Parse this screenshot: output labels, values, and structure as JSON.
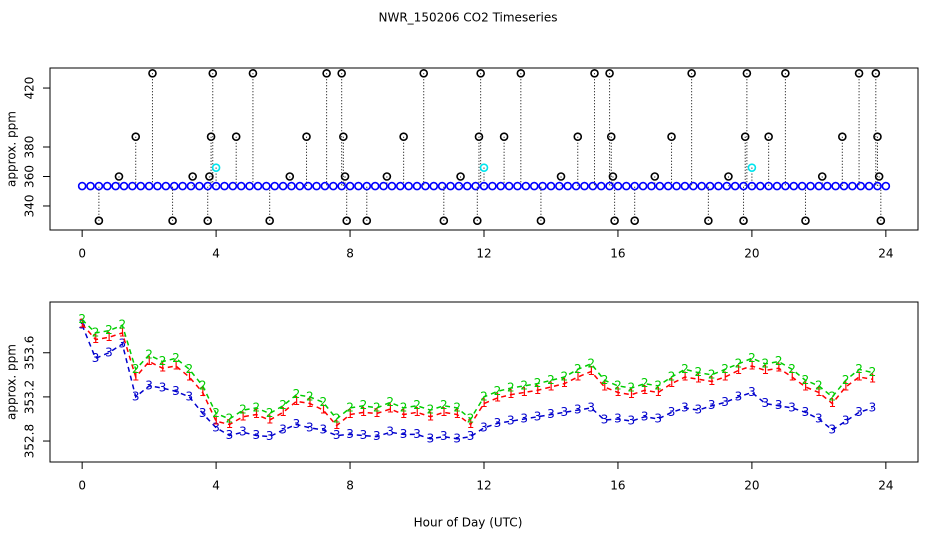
{
  "chart_data": [
    {
      "type": "scatter",
      "title": "NWR_150206  CO2 Timeseries",
      "ylabel": "approx. ppm",
      "xlim": [
        -0.96,
        24.96
      ],
      "ylim": [
        323.7,
        433.6
      ],
      "xticks": [
        0,
        4,
        8,
        12,
        16,
        20,
        24
      ],
      "yticks": [
        340,
        360,
        380,
        420
      ],
      "drop_lines": true,
      "series": [
        {
          "color": "#0000ff",
          "x": [
            0,
            0.25,
            0.5,
            0.75,
            1,
            1.25,
            1.5,
            1.75,
            2,
            2.25,
            2.5,
            2.75,
            3,
            3.25,
            3.5,
            3.75,
            4,
            4.25,
            4.5,
            4.75,
            5,
            5.25,
            5.5,
            5.75,
            6,
            6.25,
            6.5,
            6.75,
            7,
            7.25,
            7.5,
            7.75,
            8,
            8.25,
            8.5,
            8.75,
            9,
            9.25,
            9.5,
            9.75,
            10,
            10.25,
            10.5,
            10.75,
            11,
            11.25,
            11.5,
            11.75,
            12,
            12.25,
            12.5,
            12.75,
            13,
            13.25,
            13.5,
            13.75,
            14,
            14.25,
            14.5,
            14.75,
            15,
            15.25,
            15.5,
            15.75,
            16,
            16.25,
            16.5,
            16.75,
            17,
            17.25,
            17.5,
            17.75,
            18,
            18.25,
            18.5,
            18.75,
            19,
            19.25,
            19.5,
            19.75,
            20,
            20.25,
            20.5,
            20.75,
            21,
            21.25,
            21.5,
            21.75,
            22,
            22.25,
            22.5,
            22.75,
            23,
            23.25,
            23.5,
            23.75,
            24
          ],
          "values": [
            353.5,
            353.5,
            353.5,
            353.5,
            353.5,
            353.5,
            353.5,
            353.5,
            353.5,
            353.5,
            353.5,
            353.5,
            353.5,
            353.5,
            353.5,
            353.5,
            353.5,
            353.5,
            353.5,
            353.5,
            353.5,
            353.5,
            353.5,
            353.5,
            353.5,
            353.5,
            353.5,
            353.5,
            353.5,
            353.5,
            353.5,
            353.5,
            353.5,
            353.5,
            353.5,
            353.5,
            353.5,
            353.5,
            353.5,
            353.5,
            353.5,
            353.5,
            353.5,
            353.5,
            353.5,
            353.5,
            353.5,
            353.5,
            353.5,
            353.5,
            353.5,
            353.5,
            353.5,
            353.5,
            353.5,
            353.5,
            353.5,
            353.5,
            353.5,
            353.5,
            353.5,
            353.5,
            353.5,
            353.5,
            353.5,
            353.5,
            353.5,
            353.5,
            353.5,
            353.5,
            353.5,
            353.5,
            353.5,
            353.5,
            353.5,
            353.5,
            353.5,
            353.5,
            353.5,
            353.5,
            353.5,
            353.5,
            353.5,
            353.5,
            353.5,
            353.5,
            353.5,
            353.5,
            353.5,
            353.5,
            353.5,
            353.5,
            353.5,
            353.5,
            353.5,
            353.5,
            353.5
          ]
        },
        {
          "color": "#000000",
          "x": [
            0.5,
            1.1,
            1.6,
            2.1,
            2.7,
            3.3,
            3.75,
            3.8,
            3.85,
            3.9,
            4.6,
            5.1,
            5.6,
            6.2,
            6.7,
            7.3,
            7.75,
            7.8,
            7.85,
            7.9,
            8.5,
            9.1,
            9.6,
            10.2,
            10.8,
            11.3,
            11.8,
            11.85,
            11.9,
            12.6,
            13.1,
            13.7,
            14.3,
            14.8,
            15.3,
            15.75,
            15.8,
            15.85,
            15.9,
            16.5,
            17.1,
            17.6,
            18.2,
            18.7,
            19.3,
            19.75,
            19.8,
            19.85,
            20.5,
            21.0,
            21.6,
            22.1,
            22.7,
            23.2,
            23.7,
            23.75,
            23.8,
            23.85
          ],
          "values": [
            330,
            360,
            387,
            430,
            330,
            360,
            330,
            360,
            387,
            430,
            387,
            430,
            330,
            360,
            387,
            430,
            430,
            387,
            360,
            330,
            330,
            360,
            387,
            430,
            330,
            360,
            330,
            387,
            430,
            387,
            430,
            330,
            360,
            387,
            430,
            430,
            387,
            360,
            330,
            330,
            360,
            387,
            430,
            330,
            360,
            330,
            387,
            430,
            387,
            430,
            330,
            360,
            387,
            430,
            430,
            387,
            360,
            330
          ]
        },
        {
          "color": "#00e5ee",
          "x": [
            4.0,
            12.0,
            20.0
          ],
          "values": [
            366,
            366,
            366
          ]
        }
      ]
    },
    {
      "type": "line",
      "ylabel": "approx. ppm",
      "xlabel": "Hour of Day (UTC)",
      "xlim": [
        -0.96,
        24.96
      ],
      "ylim": [
        352.61,
        354.06
      ],
      "xticks": [
        0,
        4,
        8,
        12,
        16,
        20,
        24
      ],
      "yticks": [
        352.8,
        353.2,
        353.6
      ],
      "x": [
        0,
        0.4,
        0.8,
        1.2,
        1.6,
        2,
        2.4,
        2.8,
        3.2,
        3.6,
        4,
        4.4,
        4.8,
        5.2,
        5.6,
        6,
        6.4,
        6.8,
        7.2,
        7.6,
        8,
        8.4,
        8.8,
        9.2,
        9.6,
        10,
        10.4,
        10.8,
        11.2,
        11.6,
        12,
        12.4,
        12.8,
        13.2,
        13.6,
        14,
        14.4,
        14.8,
        15.2,
        15.6,
        16,
        16.4,
        16.8,
        17.2,
        17.6,
        18,
        18.4,
        18.8,
        19.2,
        19.6,
        20,
        20.4,
        20.8,
        21.2,
        21.6,
        22,
        22.4,
        22.8,
        23.2,
        23.6
      ],
      "series": [
        {
          "marker": "3",
          "color": "#0000cd",
          "values": [
            353.85,
            353.55,
            353.6,
            353.68,
            353.2,
            353.3,
            353.28,
            353.25,
            353.2,
            353.05,
            352.92,
            352.85,
            352.88,
            352.85,
            352.84,
            352.9,
            352.95,
            352.92,
            352.9,
            352.85,
            352.86,
            352.85,
            352.84,
            352.88,
            352.86,
            352.86,
            352.82,
            352.84,
            352.82,
            352.84,
            352.92,
            352.96,
            352.98,
            353.0,
            353.02,
            353.04,
            353.06,
            353.08,
            353.1,
            352.99,
            353.0,
            352.98,
            353.02,
            353.0,
            353.06,
            353.1,
            353.08,
            353.12,
            353.15,
            353.2,
            353.24,
            353.14,
            353.12,
            353.1,
            353.06,
            353.0,
            352.9,
            352.98,
            353.06,
            353.1
          ]
        },
        {
          "marker": "1",
          "color": "#ff0000",
          "values": [
            353.86,
            353.72,
            353.74,
            353.78,
            353.38,
            353.52,
            353.46,
            353.48,
            353.38,
            353.24,
            352.98,
            352.95,
            353.02,
            353.04,
            352.99,
            353.06,
            353.16,
            353.14,
            353.08,
            352.94,
            353.04,
            353.06,
            353.05,
            353.09,
            353.04,
            353.06,
            353.02,
            353.06,
            353.04,
            352.95,
            353.14,
            353.19,
            353.22,
            353.24,
            353.26,
            353.29,
            353.32,
            353.38,
            353.43,
            353.29,
            353.24,
            353.22,
            353.26,
            353.24,
            353.32,
            353.38,
            353.36,
            353.34,
            353.38,
            353.44,
            353.48,
            353.44,
            353.46,
            353.38,
            353.29,
            353.24,
            353.14,
            353.29,
            353.38,
            353.36
          ]
        },
        {
          "marker": "2",
          "color": "#00cd00",
          "values": [
            353.9,
            353.78,
            353.8,
            353.85,
            353.45,
            353.58,
            353.52,
            353.55,
            353.45,
            353.3,
            353.05,
            353.0,
            353.08,
            353.1,
            353.05,
            353.12,
            353.22,
            353.2,
            353.15,
            353.0,
            353.1,
            353.12,
            353.1,
            353.15,
            353.1,
            353.12,
            353.08,
            353.12,
            353.1,
            353.0,
            353.2,
            353.25,
            353.28,
            353.3,
            353.32,
            353.35,
            353.38,
            353.45,
            353.5,
            353.35,
            353.3,
            353.28,
            353.32,
            353.3,
            353.38,
            353.45,
            353.42,
            353.4,
            353.45,
            353.5,
            353.55,
            353.5,
            353.52,
            353.45,
            353.35,
            353.3,
            353.2,
            353.35,
            353.45,
            353.42
          ]
        }
      ]
    }
  ]
}
